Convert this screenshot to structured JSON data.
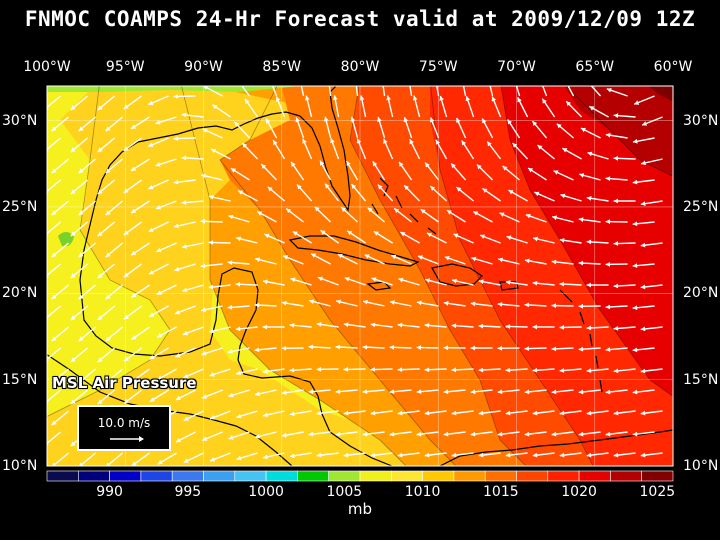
{
  "title": "FNMOC COAMPS 24-Hr Forecast valid at 2009/12/09 12Z",
  "field_label": "MSL Air Pressure",
  "reference_vector": {
    "label": "10.0 m/s",
    "speed": 10.0,
    "unit": "m/s"
  },
  "map_extent": {
    "lon_min": -100,
    "lon_max": -60,
    "lat_min": 10,
    "lat_max": 32
  },
  "lon_ticks": [
    {
      "value": -100,
      "label": "100°W"
    },
    {
      "value": -95,
      "label": "95°W"
    },
    {
      "value": -90,
      "label": "90°W"
    },
    {
      "value": -85,
      "label": "85°W"
    },
    {
      "value": -80,
      "label": "80°W"
    },
    {
      "value": -75,
      "label": "75°W"
    },
    {
      "value": -70,
      "label": "70°W"
    },
    {
      "value": -65,
      "label": "65°W"
    },
    {
      "value": -60,
      "label": "60°W"
    }
  ],
  "lat_ticks": [
    {
      "value": 30,
      "label": "30°N"
    },
    {
      "value": 25,
      "label": "25°N"
    },
    {
      "value": 20,
      "label": "20°N"
    },
    {
      "value": 15,
      "label": "15°N"
    },
    {
      "value": 10,
      "label": "10°N"
    }
  ],
  "colorbar": {
    "unit": "mb",
    "colors": [
      "#0a0a50",
      "#00007d",
      "#0000c8",
      "#1e46e6",
      "#3c78f0",
      "#3ca0f0",
      "#46c3f5",
      "#00dcdc",
      "#00c800",
      "#a0e632",
      "#f0f01e",
      "#ffe632",
      "#ffc800",
      "#ff9b00",
      "#ff6e00",
      "#ff4600",
      "#ff2000",
      "#e60000",
      "#b40000",
      "#820000"
    ],
    "tick_labels": [
      {
        "value": 990,
        "label": "990"
      },
      {
        "value": 995,
        "label": "995"
      },
      {
        "value": 1000,
        "label": "1000"
      },
      {
        "value": 1005,
        "label": "1005"
      },
      {
        "value": 1010,
        "label": "1010"
      },
      {
        "value": 1015,
        "label": "1015"
      },
      {
        "value": 1020,
        "label": "1020"
      },
      {
        "value": 1025,
        "label": "1025"
      }
    ],
    "min": 986,
    "max": 1026
  },
  "pressure_regions": [
    {
      "name": "western-gulf",
      "value": 1009,
      "color": "#f5f01e"
    },
    {
      "name": "gulf-coast",
      "value": 1011,
      "color": "#ffd21e"
    },
    {
      "name": "central",
      "value": 1013,
      "color": "#ffa000"
    },
    {
      "name": "caribbean-central",
      "value": 1015,
      "color": "#ff7800"
    },
    {
      "name": "east",
      "value": 1017,
      "color": "#ff4b00"
    },
    {
      "name": "far-east",
      "value": 1019,
      "color": "#ff2800"
    },
    {
      "name": "atlantic-high",
      "value": 1021,
      "color": "#e60000"
    },
    {
      "name": "atlantic-core",
      "value": 1023,
      "color": "#b40000"
    },
    {
      "name": "corner-max",
      "value": 1025,
      "color": "#7d0000"
    },
    {
      "name": "texas-low",
      "value": 1005,
      "color": "#78d228"
    },
    {
      "name": "florida-low",
      "value": 1007,
      "color": "#a0e632"
    }
  ],
  "colors": {
    "vector": "#ffffff",
    "coastline": "#000000",
    "grid": "#ffffff",
    "background": "#000000"
  }
}
